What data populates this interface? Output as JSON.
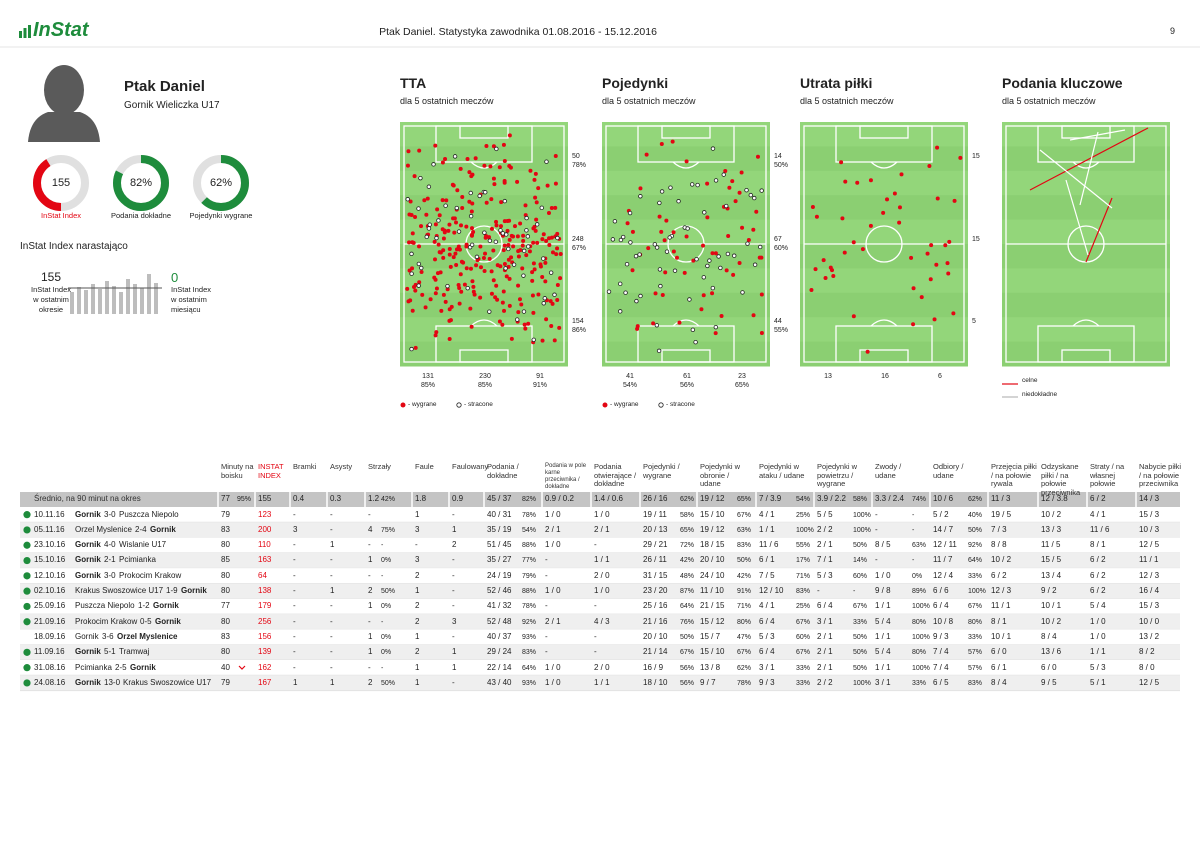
{
  "header": {
    "logo": "InStat",
    "title": "Ptak Daniel. Statystyka zawodnika 01.08.2016 - 15.12.2016",
    "page": "9"
  },
  "player": {
    "name": "Ptak Daniel",
    "team": "Gornik Wieliczka U17",
    "metrics": [
      {
        "value": "155",
        "label": "InStat Index"
      },
      {
        "value": "82%",
        "label": "Podania dokładne"
      },
      {
        "value": "62%",
        "label": "Pojedynki wygrane"
      }
    ],
    "index_title": "InStat Index narastająco",
    "period": {
      "value": "155",
      "label": "InStat Index w ostatnim okresie"
    },
    "month": {
      "value": "0",
      "label": "InStat Index w ostatnim miesiącu"
    }
  },
  "pitches": [
    {
      "title": "TTA",
      "subtitle": "dla 5 ostatnich meczów",
      "side": [
        [
          "50",
          "78%"
        ],
        [
          "248",
          "67%"
        ],
        [
          "154",
          "86%"
        ]
      ],
      "bottom": [
        [
          "131",
          "85%"
        ],
        [
          "230",
          "85%"
        ],
        [
          "91",
          "91%"
        ]
      ],
      "legend": [
        "- wygrane",
        "- stracone"
      ]
    },
    {
      "title": "Pojedynki",
      "subtitle": "dla 5 ostatnich meczów",
      "side": [
        [
          "14",
          "50%"
        ],
        [
          "67",
          "60%"
        ],
        [
          "44",
          "55%"
        ]
      ],
      "bottom": [
        [
          "41",
          "54%"
        ],
        [
          "61",
          "56%"
        ],
        [
          "23",
          "65%"
        ]
      ],
      "legend": [
        "- wygrane",
        "- stracone"
      ]
    },
    {
      "title": "Utrata piłki",
      "subtitle": "dla 5 ostatnich meczów",
      "side": [
        [
          "15"
        ],
        [
          "15"
        ],
        [
          "5"
        ]
      ],
      "bottom": [
        [
          "13"
        ],
        [
          "16"
        ],
        [
          "6"
        ]
      ]
    },
    {
      "title": "Podania kluczowe",
      "subtitle": "dla 5 ostatnich meczów",
      "legend": [
        "celne",
        "niedokładne"
      ]
    }
  ],
  "table": {
    "columns": [
      "Minuty na boisku",
      "INSTAT INDEX",
      "Bramki",
      "Asysty",
      "Strzały",
      "Faule",
      "Faulowany",
      "Podania / dokładne",
      "Podania w pole karne przeciwnika / dokładne",
      "Podania otwierające / dokładne",
      "Pojedynki / wygrane",
      "Pojedynki w obronie / udane",
      "Pojedynki w ataku / udane",
      "Pojedynki w powietrzu / wygrane",
      "Zwody / udane",
      "Odbiory / udane",
      "Przejęcia piłki / na połowie rywala",
      "Odzyskane piłki / na połowie przeciwnika",
      "Straty / na własnej połowie",
      "Nabycie piłki / na połowie przeciwnika"
    ],
    "average": {
      "label": "Średnio, na 90 minut na okres",
      "cells": [
        [
          "77",
          "95%"
        ],
        [
          "155"
        ],
        [
          "0.4"
        ],
        [
          "0.3"
        ],
        [
          "1.2",
          "42%"
        ],
        [
          "1.8"
        ],
        [
          "0.9"
        ],
        [
          "45 / 37",
          "82%"
        ],
        [
          "0.9 / 0.2"
        ],
        [
          "1.4 / 0.6"
        ],
        [
          "26 / 16",
          "62%"
        ],
        [
          "19 / 12",
          "65%"
        ],
        [
          "7 / 3.9",
          "54%"
        ],
        [
          "3.9 / 2.2",
          "58%"
        ],
        [
          "3.3 / 2.4",
          "74%"
        ],
        [
          "10 / 6",
          "62%"
        ],
        [
          "11 / 3"
        ],
        [
          "12 / 3.8"
        ],
        [
          "6 / 2"
        ],
        [
          "14 / 3"
        ]
      ]
    },
    "rows": [
      {
        "date": "10.11.16",
        "home": "Gornik",
        "score": "3-0",
        "away": "Puszcza Niepolo",
        "bold": "home",
        "marker": true,
        "cells": [
          [
            "79"
          ],
          [
            "123"
          ],
          [
            "-"
          ],
          [
            "-"
          ],
          [
            "-"
          ],
          [
            "1"
          ],
          [
            "-"
          ],
          [
            "40 / 31",
            "78%"
          ],
          [
            "1 / 0"
          ],
          [
            "1 / 0"
          ],
          [
            "19 / 11",
            "58%"
          ],
          [
            "15 / 10",
            "67%"
          ],
          [
            "4 / 1",
            "25%"
          ],
          [
            "5 / 5",
            "100%"
          ],
          [
            "-",
            "-"
          ],
          [
            "5 / 2",
            "40%"
          ],
          [
            "19 / 5"
          ],
          [
            "10 / 2"
          ],
          [
            "4 / 1"
          ],
          [
            "15 / 3"
          ]
        ]
      },
      {
        "date": "05.11.16",
        "home": "Orzel Myslenice",
        "score": "2-4",
        "away": "Gornik",
        "bold": "away",
        "marker": true,
        "cells": [
          [
            "83"
          ],
          [
            "200"
          ],
          [
            "3"
          ],
          [
            "-"
          ],
          [
            "4",
            "75%"
          ],
          [
            "3"
          ],
          [
            "1"
          ],
          [
            "35 / 19",
            "54%"
          ],
          [
            "2 / 1"
          ],
          [
            "2 / 1"
          ],
          [
            "20 / 13",
            "65%"
          ],
          [
            "19 / 12",
            "63%"
          ],
          [
            "1 / 1",
            "100%"
          ],
          [
            "2 / 2",
            "100%"
          ],
          [
            "-",
            "-"
          ],
          [
            "14 / 7",
            "50%"
          ],
          [
            "7 / 3"
          ],
          [
            "13 / 3"
          ],
          [
            "11 / 6"
          ],
          [
            "10 / 3"
          ]
        ]
      },
      {
        "date": "23.10.16",
        "home": "Gornik",
        "score": "4-0",
        "away": "Wislanie U17",
        "bold": "home",
        "marker": true,
        "cells": [
          [
            "80"
          ],
          [
            "110"
          ],
          [
            "-"
          ],
          [
            "1"
          ],
          [
            "-",
            "-"
          ],
          [
            "-"
          ],
          [
            "2"
          ],
          [
            "51 / 45",
            "88%"
          ],
          [
            "1 / 0"
          ],
          [
            "-"
          ],
          [
            "29 / 21",
            "72%"
          ],
          [
            "18 / 15",
            "83%"
          ],
          [
            "11 / 6",
            "55%"
          ],
          [
            "2 / 1",
            "50%"
          ],
          [
            "8 / 5",
            "63%"
          ],
          [
            "12 / 11",
            "92%"
          ],
          [
            "8 / 8"
          ],
          [
            "11 / 5"
          ],
          [
            "8 / 1"
          ],
          [
            "12 / 5"
          ]
        ]
      },
      {
        "date": "15.10.16",
        "home": "Gornik",
        "score": "2-1",
        "away": "Pcimianka",
        "bold": "home",
        "marker": true,
        "cells": [
          [
            "85"
          ],
          [
            "163"
          ],
          [
            "-"
          ],
          [
            "-"
          ],
          [
            "1",
            "0%"
          ],
          [
            "3"
          ],
          [
            "-"
          ],
          [
            "35 / 27",
            "77%"
          ],
          [
            "-"
          ],
          [
            "1 / 1"
          ],
          [
            "26 / 11",
            "42%"
          ],
          [
            "20 / 10",
            "50%"
          ],
          [
            "6 / 1",
            "17%"
          ],
          [
            "7 / 1",
            "14%"
          ],
          [
            "-",
            "-"
          ],
          [
            "11 / 7",
            "64%"
          ],
          [
            "10 / 2"
          ],
          [
            "15 / 5"
          ],
          [
            "6 / 2"
          ],
          [
            "11 / 1"
          ]
        ]
      },
      {
        "date": "12.10.16",
        "home": "Gornik",
        "score": "3-0",
        "away": "Prokocim Krakow",
        "bold": "home",
        "marker": true,
        "cells": [
          [
            "80"
          ],
          [
            "64"
          ],
          [
            "-"
          ],
          [
            "-"
          ],
          [
            "-",
            "-"
          ],
          [
            "2"
          ],
          [
            "-"
          ],
          [
            "24 / 19",
            "79%"
          ],
          [
            "-"
          ],
          [
            "2 / 0"
          ],
          [
            "31 / 15",
            "48%"
          ],
          [
            "24 / 10",
            "42%"
          ],
          [
            "7 / 5",
            "71%"
          ],
          [
            "5 / 3",
            "60%"
          ],
          [
            "1 / 0",
            "0%"
          ],
          [
            "12 / 4",
            "33%"
          ],
          [
            "6 / 2"
          ],
          [
            "13 / 4"
          ],
          [
            "6 / 2"
          ],
          [
            "12 / 3"
          ]
        ]
      },
      {
        "date": "02.10.16",
        "home": "Krakus Swoszowice U17",
        "score": "1-9",
        "away": "Gornik",
        "bold": "away",
        "marker": true,
        "cells": [
          [
            "80"
          ],
          [
            "138"
          ],
          [
            "-"
          ],
          [
            "1"
          ],
          [
            "2",
            "50%"
          ],
          [
            "1"
          ],
          [
            "-"
          ],
          [
            "52 / 46",
            "88%"
          ],
          [
            "1 / 0"
          ],
          [
            "1 / 0"
          ],
          [
            "23 / 20",
            "87%"
          ],
          [
            "11 / 10",
            "91%"
          ],
          [
            "12 / 10",
            "83%"
          ],
          [
            "-",
            "-"
          ],
          [
            "9 / 8",
            "89%"
          ],
          [
            "6 / 6",
            "100%"
          ],
          [
            "12 / 3"
          ],
          [
            "9 / 2"
          ],
          [
            "6 / 2"
          ],
          [
            "16 / 4"
          ]
        ]
      },
      {
        "date": "25.09.16",
        "home": "Puszcza Niepolo",
        "score": "1-2",
        "away": "Gornik",
        "bold": "away",
        "marker": true,
        "cells": [
          [
            "77"
          ],
          [
            "179"
          ],
          [
            "-"
          ],
          [
            "-"
          ],
          [
            "1",
            "0%"
          ],
          [
            "2"
          ],
          [
            "-"
          ],
          [
            "41 / 32",
            "78%"
          ],
          [
            "-"
          ],
          [
            "-"
          ],
          [
            "25 / 16",
            "64%"
          ],
          [
            "21 / 15",
            "71%"
          ],
          [
            "4 / 1",
            "25%"
          ],
          [
            "6 / 4",
            "67%"
          ],
          [
            "1 / 1",
            "100%"
          ],
          [
            "6 / 4",
            "67%"
          ],
          [
            "11 / 1"
          ],
          [
            "10 / 1"
          ],
          [
            "5 / 4"
          ],
          [
            "15 / 3"
          ]
        ]
      },
      {
        "date": "21.09.16",
        "home": "Prokocim Krakow",
        "score": "0-5",
        "away": "Gornik",
        "bold": "away",
        "marker": true,
        "cells": [
          [
            "80"
          ],
          [
            "256"
          ],
          [
            "-"
          ],
          [
            "-"
          ],
          [
            "-",
            "-"
          ],
          [
            "2"
          ],
          [
            "3"
          ],
          [
            "52 / 48",
            "92%"
          ],
          [
            "2 / 1"
          ],
          [
            "4 / 3"
          ],
          [
            "21 / 16",
            "76%"
          ],
          [
            "15 / 12",
            "80%"
          ],
          [
            "6 / 4",
            "67%"
          ],
          [
            "3 / 1",
            "33%"
          ],
          [
            "5 / 4",
            "80%"
          ],
          [
            "10 / 8",
            "80%"
          ],
          [
            "8 / 1"
          ],
          [
            "10 / 2"
          ],
          [
            "1 / 0"
          ],
          [
            "10 / 0"
          ]
        ]
      },
      {
        "date": "18.09.16",
        "home": "Gornik",
        "score": "3-6",
        "away": "Orzel Myslenice",
        "bold": "away",
        "marker": false,
        "cells": [
          [
            "83"
          ],
          [
            "156"
          ],
          [
            "-"
          ],
          [
            "-"
          ],
          [
            "1",
            "0%"
          ],
          [
            "1"
          ],
          [
            "-"
          ],
          [
            "40 / 37",
            "93%"
          ],
          [
            "-"
          ],
          [
            "-"
          ],
          [
            "20 / 10",
            "50%"
          ],
          [
            "15 / 7",
            "47%"
          ],
          [
            "5 / 3",
            "60%"
          ],
          [
            "2 / 1",
            "50%"
          ],
          [
            "1 / 1",
            "100%"
          ],
          [
            "9 / 3",
            "33%"
          ],
          [
            "10 / 1"
          ],
          [
            "8 / 4"
          ],
          [
            "1 / 0"
          ],
          [
            "13 / 2"
          ]
        ]
      },
      {
        "date": "11.09.16",
        "home": "Gornik",
        "score": "5-1",
        "away": "Tramwaj",
        "bold": "home",
        "marker": true,
        "cells": [
          [
            "80"
          ],
          [
            "139"
          ],
          [
            "-"
          ],
          [
            "-"
          ],
          [
            "1",
            "0%"
          ],
          [
            "2"
          ],
          [
            "1"
          ],
          [
            "29 / 24",
            "83%"
          ],
          [
            "-"
          ],
          [
            "-"
          ],
          [
            "21 / 14",
            "67%"
          ],
          [
            "15 / 10",
            "67%"
          ],
          [
            "6 / 4",
            "67%"
          ],
          [
            "2 / 1",
            "50%"
          ],
          [
            "5 / 4",
            "80%"
          ],
          [
            "7 / 4",
            "57%"
          ],
          [
            "6 / 0"
          ],
          [
            "13 / 6"
          ],
          [
            "1 / 1"
          ],
          [
            "8 / 2"
          ]
        ]
      },
      {
        "date": "31.08.16",
        "home": "Pcimianka",
        "score": "2-5",
        "away": "Gornik",
        "bold": "away",
        "marker": true,
        "substituted": true,
        "cells": [
          [
            "40"
          ],
          [
            "162"
          ],
          [
            "-"
          ],
          [
            "-"
          ],
          [
            "-",
            "-"
          ],
          [
            "1"
          ],
          [
            "1"
          ],
          [
            "22 / 14",
            "64%"
          ],
          [
            "1 / 0"
          ],
          [
            "2 / 0"
          ],
          [
            "16 / 9",
            "56%"
          ],
          [
            "13 / 8",
            "62%"
          ],
          [
            "3 / 1",
            "33%"
          ],
          [
            "2 / 1",
            "50%"
          ],
          [
            "1 / 1",
            "100%"
          ],
          [
            "7 / 4",
            "57%"
          ],
          [
            "6 / 1"
          ],
          [
            "6 / 0"
          ],
          [
            "5 / 3"
          ],
          [
            "8 / 0"
          ]
        ]
      },
      {
        "date": "24.08.16",
        "home": "Gornik",
        "score": "13-0",
        "away": "Krakus Swoszowice U17",
        "bold": "home",
        "marker": true,
        "cells": [
          [
            "79"
          ],
          [
            "167"
          ],
          [
            "1"
          ],
          [
            "1"
          ],
          [
            "2",
            "50%"
          ],
          [
            "1"
          ],
          [
            "-"
          ],
          [
            "43 / 40",
            "93%"
          ],
          [
            "1 / 0"
          ],
          [
            "1 / 1"
          ],
          [
            "18 / 10",
            "56%"
          ],
          [
            "9 / 7",
            "78%"
          ],
          [
            "9 / 3",
            "33%"
          ],
          [
            "2 / 2",
            "100%"
          ],
          [
            "3 / 1",
            "33%"
          ],
          [
            "6 / 5",
            "83%"
          ],
          [
            "8 / 4"
          ],
          [
            "9 / 5"
          ],
          [
            "5 / 1"
          ],
          [
            "12 / 5"
          ]
        ]
      }
    ]
  }
}
